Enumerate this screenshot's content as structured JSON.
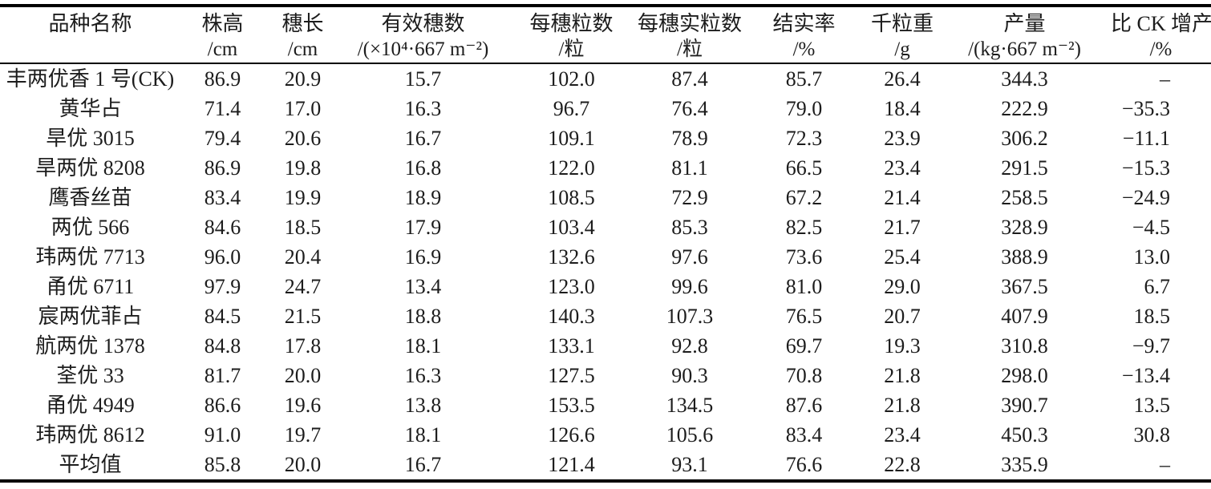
{
  "table": {
    "columns": [
      {
        "name": "品种名称",
        "unit": ""
      },
      {
        "name": "株高",
        "unit": "/cm"
      },
      {
        "name": "穗长",
        "unit": "/cm"
      },
      {
        "name": "有效穗数",
        "unit": "/(×10⁴·667 m⁻²)"
      },
      {
        "name": "每穗粒数",
        "unit": "/粒"
      },
      {
        "name": "每穗实粒数",
        "unit": "/粒"
      },
      {
        "name": "结实率",
        "unit": "/%"
      },
      {
        "name": "千粒重",
        "unit": "/g"
      },
      {
        "name": "产量",
        "unit": "/(kg·667 m⁻²)"
      },
      {
        "name": "比 CK 增产",
        "unit": "/%"
      }
    ],
    "rows": [
      [
        "丰两优香 1 号(CK)",
        "86.9",
        "20.9",
        "15.7",
        "102.0",
        "87.4",
        "85.7",
        "26.4",
        "344.3",
        "–"
      ],
      [
        "黄华占",
        "71.4",
        "17.0",
        "16.3",
        "96.7",
        "76.4",
        "79.0",
        "18.4",
        "222.9",
        "−35.3"
      ],
      [
        "旱优 3015",
        "79.4",
        "20.6",
        "16.7",
        "109.1",
        "78.9",
        "72.3",
        "23.9",
        "306.2",
        "−11.1"
      ],
      [
        "旱两优 8208",
        "86.9",
        "19.8",
        "16.8",
        "122.0",
        "81.1",
        "66.5",
        "23.4",
        "291.5",
        "−15.3"
      ],
      [
        "鹰香丝苗",
        "83.4",
        "19.9",
        "18.9",
        "108.5",
        "72.9",
        "67.2",
        "21.4",
        "258.5",
        "−24.9"
      ],
      [
        "两优 566",
        "84.6",
        "18.5",
        "17.9",
        "103.4",
        "85.3",
        "82.5",
        "21.7",
        "328.9",
        "−4.5"
      ],
      [
        "玮两优 7713",
        "96.0",
        "20.4",
        "16.9",
        "132.6",
        "97.6",
        "73.6",
        "25.4",
        "388.9",
        "13.0"
      ],
      [
        "甬优 6711",
        "97.9",
        "24.7",
        "13.4",
        "123.0",
        "99.6",
        "81.0",
        "29.0",
        "367.5",
        "6.7"
      ],
      [
        "宸两优菲占",
        "84.5",
        "21.5",
        "18.8",
        "140.3",
        "107.3",
        "76.5",
        "20.7",
        "407.9",
        "18.5"
      ],
      [
        "航两优 1378",
        "84.8",
        "17.8",
        "18.1",
        "133.1",
        "92.8",
        "69.7",
        "19.3",
        "310.8",
        "−9.7"
      ],
      [
        "荃优 33",
        "81.7",
        "20.0",
        "16.3",
        "127.5",
        "90.3",
        "70.8",
        "21.8",
        "298.0",
        "−13.4"
      ],
      [
        "甬优 4949",
        "86.6",
        "19.6",
        "13.8",
        "153.5",
        "134.5",
        "87.6",
        "21.8",
        "390.7",
        "13.5"
      ],
      [
        "玮两优 8612",
        "91.0",
        "19.7",
        "18.1",
        "126.6",
        "105.6",
        "83.4",
        "23.4",
        "450.3",
        "30.8"
      ],
      [
        "平均值",
        "85.8",
        "20.0",
        "16.7",
        "121.4",
        "93.1",
        "76.6",
        "22.8",
        "335.9",
        "–"
      ]
    ]
  }
}
